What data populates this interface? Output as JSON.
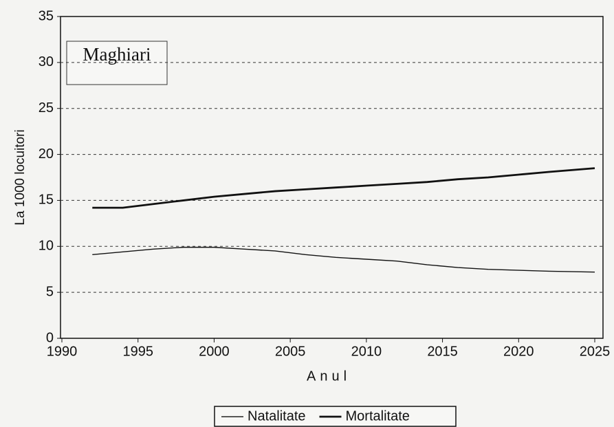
{
  "chart_data": {
    "type": "line",
    "annotation": "Maghiari",
    "x_label": "Anul",
    "y_label": "La 1000 locuitori",
    "x": [
      1992,
      1994,
      1996,
      1998,
      2000,
      2002,
      2004,
      2006,
      2008,
      2010,
      2012,
      2014,
      2016,
      2018,
      2020,
      2022,
      2025
    ],
    "series": [
      {
        "name": "Natalitate",
        "color": "#222222",
        "values": [
          9.1,
          9.4,
          9.7,
          9.9,
          9.9,
          9.7,
          9.5,
          9.1,
          8.8,
          8.6,
          8.4,
          8.0,
          7.7,
          7.5,
          7.4,
          7.3,
          7.2
        ]
      },
      {
        "name": "Mortalitate",
        "color": "#111111",
        "values": [
          14.2,
          14.2,
          14.6,
          15.0,
          15.4,
          15.7,
          16.0,
          16.2,
          16.4,
          16.6,
          16.8,
          17.0,
          17.3,
          17.5,
          17.8,
          18.1,
          18.5
        ]
      }
    ],
    "xlim": [
      1990,
      2025
    ],
    "xticks": [
      1990,
      1995,
      2000,
      2005,
      2010,
      2015,
      2020,
      2025
    ],
    "ylim": [
      0,
      35
    ],
    "yticks": [
      0,
      5,
      10,
      15,
      20,
      25,
      30,
      35
    ],
    "grid": true,
    "legend": "bottom"
  }
}
